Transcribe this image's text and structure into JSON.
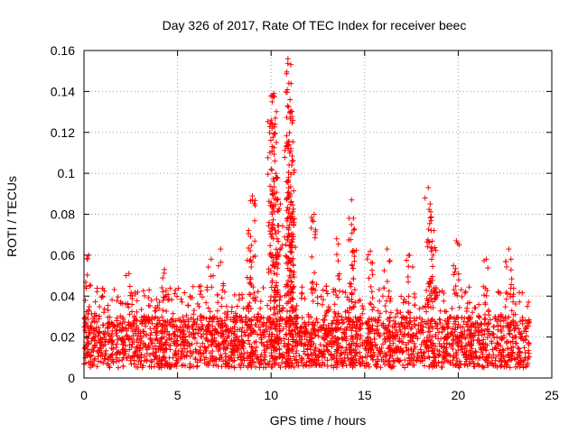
{
  "chart_data": {
    "type": "scatter",
    "title": "Day 326 of 2017, Rate Of TEC Index for receiver beec",
    "xlabel": "GPS time / hours",
    "ylabel": "ROTI / TECUs",
    "xlim": [
      0,
      25
    ],
    "ylim": [
      0,
      0.16
    ],
    "x_ticks": [
      0,
      5,
      10,
      15,
      20,
      25
    ],
    "y_ticks": [
      0,
      0.02,
      0.04,
      0.06,
      0.08,
      0.1,
      0.12,
      0.14,
      0.16
    ],
    "x_tick_labels": [
      "0",
      "5",
      "10",
      "15",
      "20",
      "25"
    ],
    "y_tick_labels": [
      "0",
      "0.02",
      "0.04",
      "0.06",
      "0.08",
      "0.1",
      "0.12",
      "0.14",
      "0.16"
    ],
    "grid": true,
    "marker": "+",
    "color": "#ff0000",
    "series": [
      {
        "name": "ROTI",
        "x_range": [
          0,
          23.8
        ],
        "typical_band": [
          0.005,
          0.03
        ],
        "notable_points": [
          {
            "x": 0.25,
            "y": 0.06
          },
          {
            "x": 2.4,
            "y": 0.051
          },
          {
            "x": 4.3,
            "y": 0.053
          },
          {
            "x": 6.8,
            "y": 0.058
          },
          {
            "x": 7.3,
            "y": 0.063
          },
          {
            "x": 8.8,
            "y": 0.072
          },
          {
            "x": 9.0,
            "y": 0.089
          },
          {
            "x": 10.0,
            "y": 0.126
          },
          {
            "x": 10.1,
            "y": 0.138
          },
          {
            "x": 10.15,
            "y": 0.139
          },
          {
            "x": 10.2,
            "y": 0.106
          },
          {
            "x": 10.3,
            "y": 0.098
          },
          {
            "x": 10.5,
            "y": 0.085
          },
          {
            "x": 10.9,
            "y": 0.156
          },
          {
            "x": 10.95,
            "y": 0.144
          },
          {
            "x": 11.0,
            "y": 0.13
          },
          {
            "x": 11.05,
            "y": 0.112
          },
          {
            "x": 11.1,
            "y": 0.104
          },
          {
            "x": 11.0,
            "y": 0.09
          },
          {
            "x": 11.2,
            "y": 0.075
          },
          {
            "x": 12.3,
            "y": 0.08
          },
          {
            "x": 13.5,
            "y": 0.068
          },
          {
            "x": 14.3,
            "y": 0.087
          },
          {
            "x": 14.4,
            "y": 0.078
          },
          {
            "x": 15.3,
            "y": 0.062
          },
          {
            "x": 16.2,
            "y": 0.063
          },
          {
            "x": 17.4,
            "y": 0.06
          },
          {
            "x": 18.4,
            "y": 0.093
          },
          {
            "x": 18.5,
            "y": 0.085
          },
          {
            "x": 18.7,
            "y": 0.072
          },
          {
            "x": 19.9,
            "y": 0.067
          },
          {
            "x": 21.5,
            "y": 0.058
          },
          {
            "x": 22.7,
            "y": 0.063
          }
        ]
      }
    ]
  }
}
